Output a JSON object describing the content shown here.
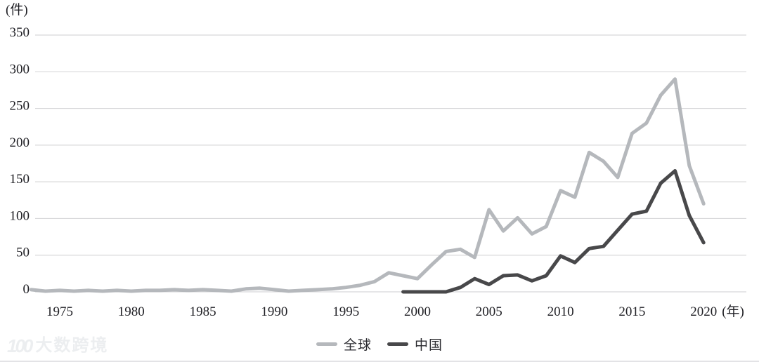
{
  "chart_data": {
    "type": "line",
    "y_axis_unit_label": "(件)",
    "x_axis_unit_label": "(年)",
    "ylim": [
      0,
      350
    ],
    "yticks": [
      0,
      50,
      100,
      150,
      200,
      250,
      300,
      350
    ],
    "xticks": [
      1975,
      1980,
      1985,
      1990,
      1995,
      2000,
      2005,
      2010,
      2015,
      2020
    ],
    "x_range": [
      1973,
      2020
    ],
    "grid": "horizontal",
    "legend_position": "bottom-center",
    "gridline_color": "#d8d8da",
    "tick_text_color": "#1f1f24",
    "series": [
      {
        "name": "全球",
        "id": "global",
        "color": "#b5b8bc",
        "start_year": 1973,
        "values": [
          3,
          1,
          2,
          1,
          2,
          1,
          2,
          1,
          2,
          2,
          3,
          2,
          3,
          2,
          1,
          4,
          5,
          3,
          1,
          2,
          3,
          4,
          6,
          9,
          14,
          26,
          22,
          18,
          37,
          55,
          58,
          47,
          112,
          83,
          101,
          79,
          89,
          138,
          129,
          190,
          178,
          156,
          216,
          230,
          268,
          290,
          172,
          120
        ]
      },
      {
        "name": "中国",
        "id": "china",
        "color": "#48484a",
        "start_year": 1999,
        "values": [
          0,
          0,
          0,
          0,
          6,
          18,
          10,
          22,
          23,
          15,
          22,
          49,
          40,
          59,
          62,
          84,
          106,
          110,
          148,
          165,
          104,
          67
        ]
      }
    ]
  },
  "legend": {
    "items": [
      {
        "label": "全球",
        "color": "#b5b8bc"
      },
      {
        "label": "中国",
        "color": "#48484a"
      }
    ]
  },
  "watermark": {
    "logo": "100",
    "text": "大数跨境"
  }
}
